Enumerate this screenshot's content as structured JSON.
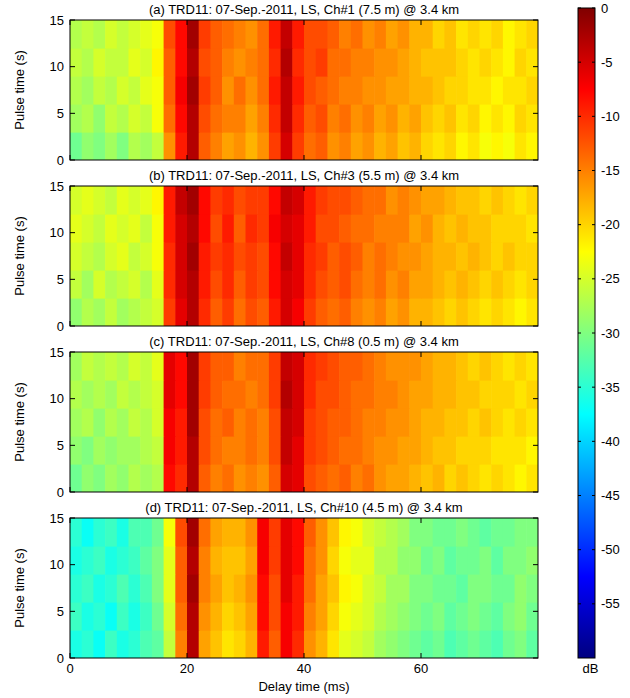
{
  "chart_data": [
    {
      "type": "heatmap",
      "title": "(a) TRD11: 07-Sep.-2011, LS, Ch#1 (7.5 m) @ 3.4 km",
      "ylabel": "Pulse time (s)",
      "x": [
        1,
        3,
        5,
        7,
        9,
        11,
        13,
        15,
        17,
        19,
        21,
        23,
        25,
        27,
        29,
        31,
        33,
        35,
        37,
        39,
        41,
        43,
        45,
        47,
        49,
        51,
        53,
        55,
        57,
        59,
        61,
        63,
        65,
        67,
        69,
        71,
        73,
        75,
        77,
        79
      ],
      "y": [
        1.5,
        4.5,
        7.5,
        10.5,
        13.5
      ],
      "values": [
        [
          -31,
          -29,
          -30,
          -28,
          -30,
          -27,
          -28,
          -26,
          -16,
          -9,
          -3,
          -13,
          -15,
          -17,
          -16,
          -18,
          -16,
          -11,
          -5,
          -11,
          -14,
          -13,
          -16,
          -15,
          -17,
          -16,
          -18,
          -17,
          -19,
          -18,
          -20,
          -21,
          -20,
          -22,
          -21,
          -23,
          -22,
          -23,
          -21,
          -22
        ],
        [
          -28,
          -27,
          -29,
          -26,
          -27,
          -25,
          -26,
          -23,
          -14,
          -8,
          -3,
          -12,
          -14,
          -15,
          -15,
          -17,
          -15,
          -10,
          -4,
          -10,
          -13,
          -12,
          -15,
          -14,
          -16,
          -15,
          -17,
          -16,
          -18,
          -17,
          -19,
          -20,
          -19,
          -21,
          -20,
          -22,
          -21,
          -22,
          -20,
          -21
        ],
        [
          -27,
          -28,
          -26,
          -27,
          -25,
          -26,
          -24,
          -23,
          -13,
          -7,
          -2,
          -11,
          -13,
          -16,
          -14,
          -16,
          -14,
          -9,
          -4,
          -9,
          -12,
          -13,
          -14,
          -15,
          -15,
          -16,
          -16,
          -17,
          -17,
          -18,
          -18,
          -19,
          -20,
          -20,
          -21,
          -21,
          -22,
          -21,
          -21,
          -20
        ],
        [
          -26,
          -27,
          -25,
          -26,
          -26,
          -24,
          -25,
          -22,
          -13,
          -8,
          -3,
          -12,
          -13,
          -15,
          -16,
          -15,
          -14,
          -10,
          -3,
          -10,
          -12,
          -11,
          -14,
          -14,
          -15,
          -15,
          -16,
          -16,
          -17,
          -18,
          -19,
          -19,
          -19,
          -20,
          -21,
          -20,
          -21,
          -22,
          -20,
          -21
        ],
        [
          -27,
          -26,
          -27,
          -25,
          -26,
          -25,
          -24,
          -23,
          -12,
          -8,
          -2,
          -11,
          -13,
          -14,
          -15,
          -16,
          -14,
          -9,
          -4,
          -9,
          -12,
          -12,
          -13,
          -15,
          -14,
          -16,
          -15,
          -17,
          -16,
          -18,
          -18,
          -20,
          -19,
          -21,
          -20,
          -21,
          -20,
          -22,
          -21,
          -20
        ]
      ],
      "xlim": [
        0,
        80
      ],
      "ylim": [
        0,
        15
      ],
      "xticks": [
        0,
        20,
        40,
        60
      ],
      "yticks": [
        0,
        5,
        10,
        15
      ],
      "tick_labels": "y"
    },
    {
      "type": "heatmap",
      "title": "(b) TRD11: 07-Sep.-2011, LS, Ch#3 (5.5 m) @ 3.4 km",
      "ylabel": "Pulse time (s)",
      "x": [
        1,
        3,
        5,
        7,
        9,
        11,
        13,
        15,
        17,
        19,
        21,
        23,
        25,
        27,
        29,
        31,
        33,
        35,
        37,
        39,
        41,
        43,
        45,
        47,
        49,
        51,
        53,
        55,
        57,
        59,
        61,
        63,
        65,
        67,
        69,
        71,
        73,
        75,
        77,
        79
      ],
      "y": [
        1.5,
        4.5,
        7.5,
        10.5,
        13.5
      ],
      "values": [
        [
          -29,
          -27,
          -28,
          -26,
          -28,
          -27,
          -26,
          -25,
          -11,
          -6,
          -3,
          -10,
          -13,
          -11,
          -14,
          -12,
          -13,
          -9,
          -5,
          -7,
          -11,
          -13,
          -14,
          -13,
          -15,
          -16,
          -15,
          -17,
          -16,
          -18,
          -18,
          -19,
          -20,
          -19,
          -20,
          -21,
          -20,
          -21,
          -22,
          -21
        ],
        [
          -26,
          -28,
          -25,
          -27,
          -26,
          -25,
          -27,
          -24,
          -10,
          -5,
          -3,
          -9,
          -12,
          -10,
          -13,
          -11,
          -12,
          -8,
          -5,
          -6,
          -10,
          -12,
          -13,
          -12,
          -14,
          -15,
          -14,
          -16,
          -15,
          -17,
          -17,
          -18,
          -19,
          -18,
          -19,
          -20,
          -19,
          -20,
          -21,
          -20
        ],
        [
          -25,
          -26,
          -27,
          -25,
          -24,
          -26,
          -25,
          -23,
          -10,
          -5,
          -2,
          -9,
          -11,
          -10,
          -12,
          -11,
          -12,
          -8,
          -4,
          -6,
          -10,
          -11,
          -13,
          -12,
          -13,
          -15,
          -14,
          -15,
          -16,
          -16,
          -17,
          -18,
          -18,
          -19,
          -18,
          -19,
          -20,
          -19,
          -20,
          -20
        ],
        [
          -24,
          -25,
          -26,
          -24,
          -25,
          -24,
          -26,
          -23,
          -9,
          -5,
          -3,
          -8,
          -12,
          -9,
          -13,
          -10,
          -11,
          -7,
          -5,
          -6,
          -9,
          -12,
          -12,
          -13,
          -14,
          -14,
          -15,
          -15,
          -15,
          -17,
          -16,
          -18,
          -19,
          -18,
          -19,
          -19,
          -20,
          -20,
          -20,
          -21
        ],
        [
          -25,
          -24,
          -25,
          -26,
          -24,
          -25,
          -24,
          -22,
          -9,
          -4,
          -2,
          -8,
          -11,
          -10,
          -12,
          -11,
          -11,
          -8,
          -4,
          -5,
          -9,
          -11,
          -12,
          -12,
          -13,
          -14,
          -14,
          -16,
          -15,
          -16,
          -17,
          -17,
          -18,
          -19,
          -19,
          -20,
          -19,
          -20,
          -21,
          -20
        ]
      ],
      "xlim": [
        0,
        80
      ],
      "ylim": [
        0,
        15
      ],
      "xticks": [
        0,
        20,
        40,
        60
      ],
      "yticks": [
        0,
        5,
        10,
        15
      ],
      "tick_labels": "y"
    },
    {
      "type": "heatmap",
      "title": "(c) TRD11: 07-Sep.-2011, LS, Ch#8 (0.5 m) @ 3.4 km",
      "ylabel": "Pulse time (s)",
      "x": [
        1,
        3,
        5,
        7,
        9,
        11,
        13,
        15,
        17,
        19,
        21,
        23,
        25,
        27,
        29,
        31,
        33,
        35,
        37,
        39,
        41,
        43,
        45,
        47,
        49,
        51,
        53,
        55,
        57,
        59,
        61,
        63,
        65,
        67,
        69,
        71,
        73,
        75,
        77,
        79
      ],
      "y": [
        1.5,
        4.5,
        7.5,
        10.5,
        13.5
      ],
      "values": [
        [
          -31,
          -29,
          -30,
          -28,
          -29,
          -27,
          -28,
          -27,
          -8,
          -10,
          -3,
          -13,
          -15,
          -14,
          -16,
          -15,
          -16,
          -13,
          -5,
          -6,
          -12,
          -13,
          -14,
          -13,
          -15,
          -14,
          -16,
          -17,
          -17,
          -18,
          -19,
          -18,
          -20,
          -19,
          -20,
          -21,
          -20,
          -21,
          -22,
          -21
        ],
        [
          -29,
          -30,
          -28,
          -29,
          -28,
          -28,
          -27,
          -26,
          -7,
          -9,
          -3,
          -12,
          -14,
          -15,
          -15,
          -14,
          -15,
          -12,
          -4,
          -6,
          -11,
          -12,
          -13,
          -14,
          -14,
          -15,
          -16,
          -16,
          -17,
          -17,
          -18,
          -19,
          -19,
          -20,
          -20,
          -20,
          -21,
          -21,
          -21,
          -22
        ],
        [
          -28,
          -27,
          -29,
          -27,
          -28,
          -26,
          -27,
          -25,
          -7,
          -9,
          -2,
          -12,
          -14,
          -13,
          -15,
          -14,
          -15,
          -12,
          -4,
          -5,
          -11,
          -12,
          -13,
          -13,
          -14,
          -15,
          -15,
          -16,
          -16,
          -17,
          -18,
          -18,
          -19,
          -19,
          -20,
          -19,
          -20,
          -21,
          -20,
          -21
        ],
        [
          -27,
          -28,
          -27,
          -28,
          -26,
          -27,
          -26,
          -25,
          -6,
          -8,
          -2,
          -11,
          -13,
          -14,
          -14,
          -15,
          -14,
          -11,
          -3,
          -5,
          -10,
          -12,
          -12,
          -13,
          -14,
          -14,
          -15,
          -15,
          -16,
          -17,
          -17,
          -18,
          -18,
          -19,
          -19,
          -20,
          -20,
          -20,
          -21,
          -20
        ],
        [
          -28,
          -26,
          -27,
          -26,
          -27,
          -25,
          -26,
          -24,
          -6,
          -8,
          -2,
          -11,
          -13,
          -13,
          -15,
          -14,
          -14,
          -11,
          -4,
          -5,
          -10,
          -11,
          -12,
          -13,
          -13,
          -14,
          -15,
          -16,
          -16,
          -16,
          -17,
          -18,
          -18,
          -19,
          -20,
          -19,
          -20,
          -21,
          -20,
          -21
        ]
      ],
      "xlim": [
        0,
        80
      ],
      "ylim": [
        0,
        15
      ],
      "xticks": [
        0,
        20,
        40,
        60
      ],
      "yticks": [
        0,
        5,
        10,
        15
      ],
      "tick_labels": "y"
    },
    {
      "type": "heatmap",
      "title": "(d) TRD11: 07-Sep.-2011, LS, Ch#10 (4.5 m) @ 3.4 km",
      "ylabel": "Pulse time (s)",
      "xlabel": "Delay time (ms)",
      "x": [
        1,
        3,
        5,
        7,
        9,
        11,
        13,
        15,
        17,
        19,
        21,
        23,
        25,
        27,
        29,
        31,
        33,
        35,
        37,
        39,
        41,
        43,
        45,
        47,
        49,
        51,
        53,
        55,
        57,
        59,
        61,
        63,
        65,
        67,
        69,
        71,
        73,
        75,
        77,
        79
      ],
      "y": [
        1.5,
        4.5,
        7.5,
        10.5,
        13.5
      ],
      "values": [
        [
          -36,
          -35,
          -37,
          -34,
          -36,
          -35,
          -33,
          -32,
          -26,
          -15,
          -3,
          -17,
          -19,
          -21,
          -20,
          -18,
          -9,
          -13,
          -7,
          -10,
          -16,
          -18,
          -21,
          -24,
          -25,
          -26,
          -28,
          -29,
          -30,
          -31,
          -32,
          -31,
          -33,
          -32,
          -31,
          -32,
          -33,
          -31,
          -30,
          -32
        ],
        [
          -34,
          -36,
          -35,
          -37,
          -34,
          -36,
          -34,
          -31,
          -25,
          -14,
          -3,
          -16,
          -18,
          -20,
          -19,
          -17,
          -8,
          -12,
          -7,
          -9,
          -15,
          -17,
          -20,
          -23,
          -24,
          -25,
          -27,
          -28,
          -29,
          -30,
          -31,
          -30,
          -32,
          -31,
          -30,
          -31,
          -32,
          -30,
          -29,
          -31
        ],
        [
          -35,
          -34,
          -36,
          -35,
          -33,
          -35,
          -33,
          -30,
          -24,
          -13,
          -2,
          -15,
          -17,
          -19,
          -18,
          -16,
          -8,
          -12,
          -6,
          -9,
          -14,
          -17,
          -19,
          -22,
          -23,
          -25,
          -26,
          -28,
          -28,
          -30,
          -30,
          -31,
          -31,
          -32,
          -30,
          -30,
          -31,
          -31,
          -29,
          -30
        ],
        [
          -36,
          -35,
          -34,
          -36,
          -35,
          -34,
          -32,
          -30,
          -24,
          -13,
          -3,
          -15,
          -18,
          -19,
          -19,
          -17,
          -7,
          -11,
          -6,
          -8,
          -14,
          -16,
          -20,
          -23,
          -24,
          -24,
          -27,
          -27,
          -29,
          -29,
          -31,
          -30,
          -32,
          -31,
          -31,
          -30,
          -32,
          -30,
          -30,
          -29
        ],
        [
          -35,
          -37,
          -35,
          -34,
          -36,
          -33,
          -33,
          -31,
          -23,
          -12,
          -2,
          -14,
          -17,
          -18,
          -18,
          -16,
          -7,
          -11,
          -6,
          -8,
          -13,
          -16,
          -19,
          -22,
          -23,
          -25,
          -26,
          -27,
          -28,
          -30,
          -30,
          -31,
          -31,
          -30,
          -31,
          -32,
          -31,
          -31,
          -30,
          -30
        ]
      ],
      "xlim": [
        0,
        80
      ],
      "ylim": [
        0,
        15
      ],
      "xticks": [
        0,
        20,
        40,
        60
      ],
      "yticks": [
        0,
        5,
        10,
        15
      ]
    }
  ],
  "colorbar": {
    "range": [
      -60,
      0
    ],
    "ticks": [
      0,
      -5,
      -10,
      -15,
      -20,
      -25,
      -30,
      -35,
      -40,
      -45,
      -50,
      -55
    ],
    "label": "dB"
  }
}
